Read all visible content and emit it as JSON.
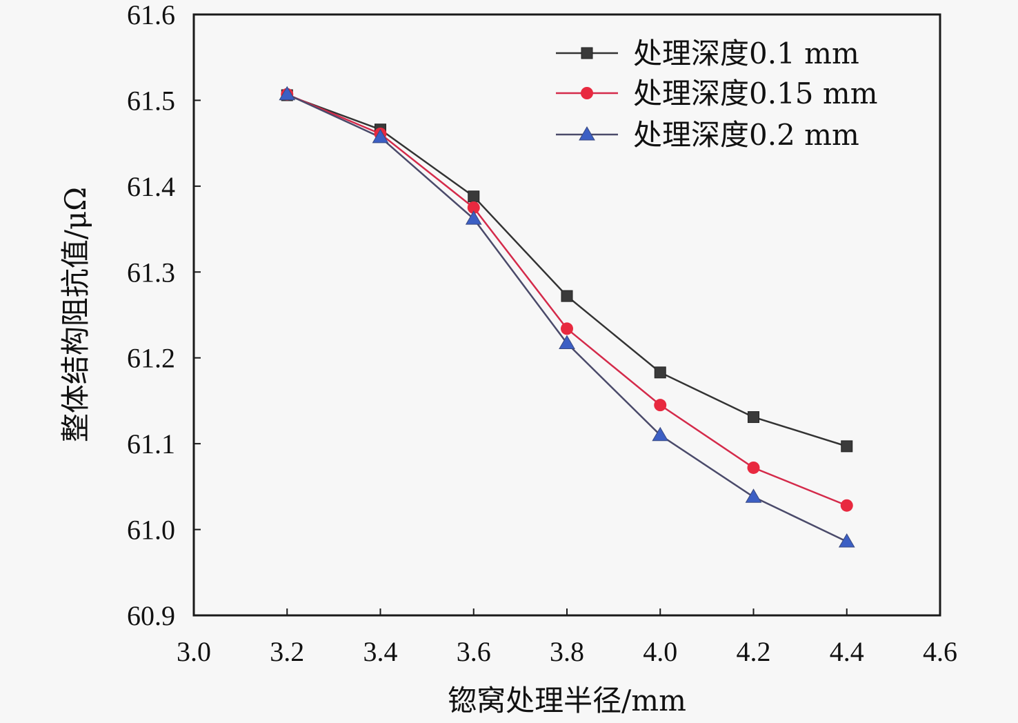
{
  "chart_data": {
    "type": "line",
    "title": "",
    "xlabel": "锪窝处理半径/mm",
    "ylabel": "整体结构阻抗值/μΩ",
    "xlim": [
      3.0,
      4.6
    ],
    "ylim": [
      60.9,
      61.6
    ],
    "xticks": [
      "3.0",
      "3.2",
      "3.4",
      "3.6",
      "3.8",
      "4.0",
      "4.2",
      "4.4",
      "4.6"
    ],
    "yticks": [
      "60.9",
      "61.0",
      "61.1",
      "61.2",
      "61.3",
      "61.4",
      "61.5",
      "61.6"
    ],
    "grid": false,
    "legend_position": "top-right",
    "x": [
      3.2,
      3.4,
      3.6,
      3.8,
      4.0,
      4.2,
      4.4
    ],
    "series": [
      {
        "name": "处理深度0.1 mm",
        "marker": "square",
        "color": "#3a3a3a",
        "line_color": "#333333",
        "values": [
          61.506,
          61.466,
          61.388,
          61.272,
          61.183,
          61.131,
          61.097
        ]
      },
      {
        "name": "处理深度0.15 mm",
        "marker": "circle",
        "color": "#e8293f",
        "line_color": "#d42a4a",
        "values": [
          61.507,
          61.461,
          61.375,
          61.234,
          61.145,
          61.072,
          61.028
        ]
      },
      {
        "name": "处理深度0.2 mm",
        "marker": "triangle",
        "color": "#3c5fc4",
        "line_color": "#4a4a6a",
        "values": [
          61.507,
          61.457,
          61.362,
          61.217,
          61.11,
          61.038,
          60.986
        ]
      }
    ]
  }
}
